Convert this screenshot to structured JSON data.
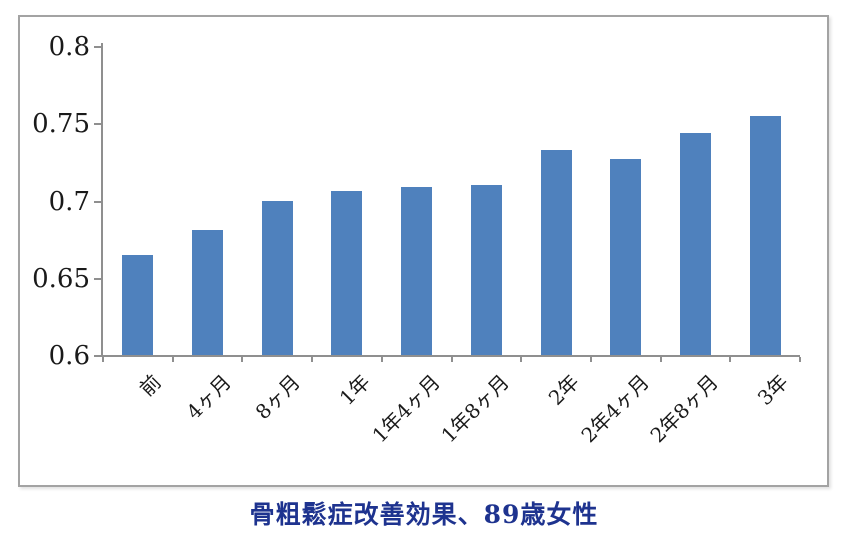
{
  "chart_data": {
    "type": "bar",
    "categories": [
      "前",
      "4ヶ月",
      "8ヶ月",
      "1年",
      "1年4ヶ月",
      "1年8ヶ月",
      "2年",
      "2年4ヶ月",
      "2年8ヶ月",
      "3年"
    ],
    "values": [
      0.665,
      0.681,
      0.7,
      0.706,
      0.709,
      0.71,
      0.733,
      0.727,
      0.744,
      0.755
    ],
    "title": "骨粗鬆症改善効果、89歳女性",
    "xlabel": "",
    "ylabel": "",
    "ylim": [
      0.6,
      0.8
    ],
    "ytick_step": 0.05,
    "ytick_labels_top_to_bottom": [
      "0.8",
      "0.75",
      "0.7",
      "0.65",
      "0.6"
    ],
    "grid": false,
    "legend": "none",
    "x_label_rotation_deg": 45,
    "colors": {
      "bar": "#4F81BD",
      "axis": "#8f8f8f",
      "title_text": "#1e338f",
      "tick_text": "#1a1a1a",
      "frame_border": "#a3a3a3",
      "background": "#ffffff"
    }
  }
}
